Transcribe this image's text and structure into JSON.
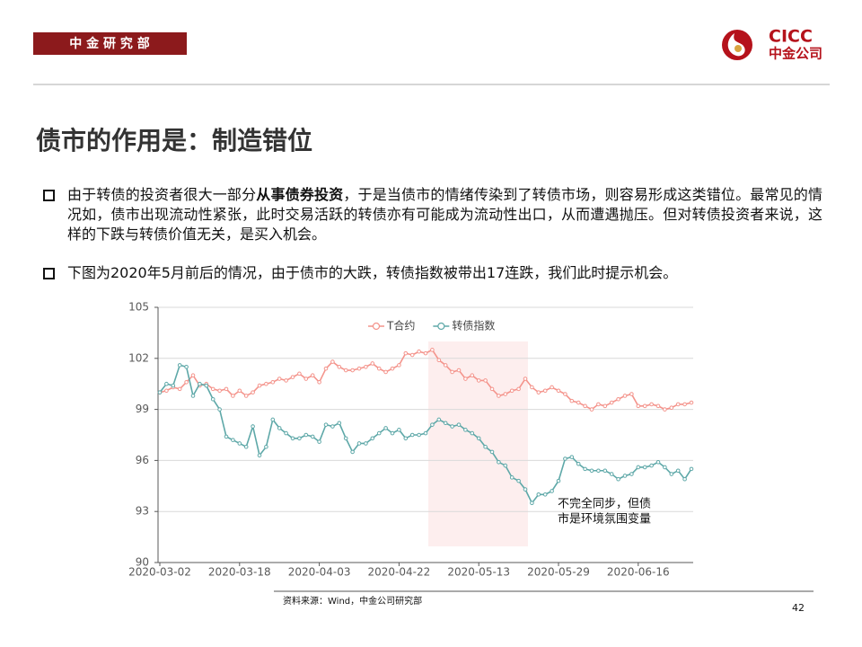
{
  "header": {
    "department": "中 金 研 究 部",
    "logo_en": "CICC",
    "logo_cn": "中金公司"
  },
  "title": "债市的作用是：制造错位",
  "bullets": [
    [
      "由于转债的投资者很大一部分",
      "从事债券投资",
      "，于是当债市的情绪传染到了转债市场，则容易形成这类错位。最常见的情况如，债市出现流动性紧张，此时交易活跃的转债亦有可能成为流动性出口，从而遭遇抛压。但对转债投资者来说，这样的下跌与转债价值无关，是买入机会。"
    ],
    [
      "下图为2020年5月前后的情况，由于债市的大跌，转债指数被带出17连跌，我们此时提示机会。"
    ]
  ],
  "chart_data": {
    "type": "line",
    "legend": "top",
    "grid": true,
    "categories": [
      "2020-03-02",
      null,
      null,
      null,
      null,
      null,
      null,
      null,
      null,
      null,
      null,
      null,
      "2020-03-18",
      null,
      null,
      null,
      null,
      null,
      null,
      null,
      null,
      null,
      null,
      null,
      "2020-04-03",
      null,
      null,
      null,
      null,
      null,
      null,
      null,
      null,
      null,
      null,
      null,
      "2020-04-22",
      null,
      null,
      null,
      null,
      null,
      null,
      null,
      null,
      null,
      null,
      null,
      "2020-05-13",
      null,
      null,
      null,
      null,
      null,
      null,
      null,
      null,
      null,
      null,
      null,
      "2020-05-29",
      null,
      null,
      null,
      null,
      null,
      null,
      null,
      null,
      null,
      null,
      null,
      "2020-06-16",
      null,
      null,
      null,
      null,
      null,
      null,
      null,
      null
    ],
    "series": [
      {
        "name": "T合约",
        "color": "#f4948c",
        "values": [
          100.0,
          100.1,
          100.3,
          100.2,
          100.6,
          101.0,
          100.4,
          100.5,
          100.2,
          100.1,
          100.2,
          99.8,
          100.1,
          99.8,
          100.0,
          100.4,
          100.5,
          100.6,
          100.8,
          100.7,
          100.9,
          101.1,
          100.8,
          101.0,
          100.6,
          101.4,
          101.8,
          101.5,
          101.3,
          101.3,
          101.4,
          101.5,
          101.7,
          101.4,
          101.2,
          101.4,
          101.6,
          102.3,
          102.2,
          102.4,
          102.3,
          102.5,
          101.9,
          101.6,
          101.2,
          101.3,
          100.8,
          101.0,
          100.7,
          100.7,
          100.2,
          99.8,
          99.9,
          100.1,
          100.2,
          100.8,
          100.3,
          100.0,
          100.1,
          100.3,
          100.1,
          99.9,
          99.5,
          99.4,
          99.2,
          99.0,
          99.3,
          99.2,
          99.4,
          99.6,
          99.8,
          99.9,
          99.2,
          99.2,
          99.3,
          99.2,
          99.0,
          99.1,
          99.3,
          99.3,
          99.4
        ]
      },
      {
        "name": "转债指数",
        "color": "#5ea8a8",
        "values": [
          100.0,
          100.5,
          100.4,
          101.6,
          101.5,
          99.8,
          100.5,
          100.4,
          99.6,
          99.0,
          97.4,
          97.2,
          97.0,
          96.8,
          98.0,
          96.3,
          96.8,
          98.4,
          97.9,
          97.6,
          97.3,
          97.3,
          97.5,
          97.4,
          97.1,
          98.1,
          98.0,
          98.2,
          97.3,
          96.5,
          97.0,
          97.0,
          97.3,
          97.6,
          97.9,
          97.6,
          97.8,
          97.3,
          97.5,
          97.5,
          97.6,
          98.1,
          98.4,
          98.2,
          98.0,
          98.1,
          97.8,
          97.6,
          97.3,
          96.8,
          96.5,
          95.9,
          95.7,
          95.0,
          94.8,
          94.3,
          93.5,
          94.0,
          94.0,
          94.2,
          94.8,
          96.1,
          96.2,
          95.8,
          95.5,
          95.4,
          95.4,
          95.4,
          95.2,
          94.9,
          95.1,
          95.2,
          95.6,
          95.6,
          95.7,
          95.9,
          95.6,
          95.2,
          95.4,
          94.9,
          95.5
        ]
      }
    ],
    "ylim": [
      90,
      105
    ],
    "yticks": [
      90,
      93,
      96,
      99,
      102,
      105
    ],
    "annotation": [
      "不完全同步，但债",
      "市是环境氛围变量"
    ]
  },
  "footer": {
    "source": "资料来源：Wind，中金公司研究部",
    "page": "42"
  }
}
